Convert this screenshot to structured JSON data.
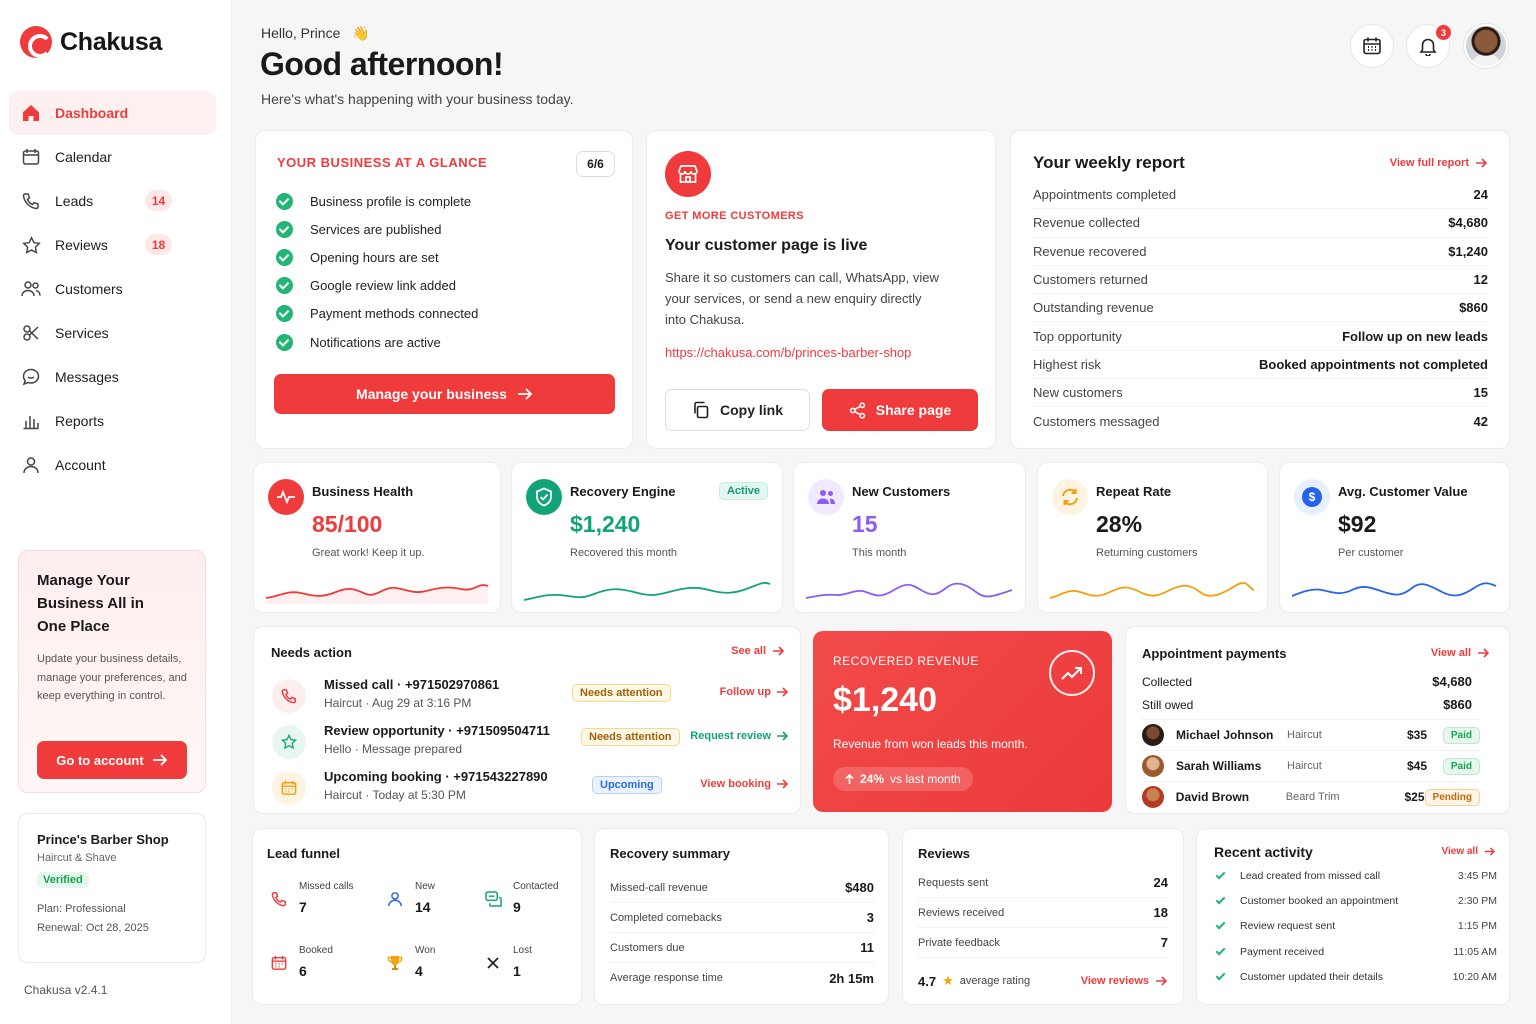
{
  "brand": {
    "name": "Chakusa",
    "version": "Chakusa v2.4.1"
  },
  "colors": {
    "accent": "#ef3b3b",
    "success": "#22b573",
    "background": "#f6f6f7"
  },
  "sidebar": {
    "items": [
      {
        "label": "Dashboard",
        "icon": "home-icon",
        "active": true
      },
      {
        "label": "Calendar",
        "icon": "calendar-icon"
      },
      {
        "label": "Leads",
        "icon": "phone-icon",
        "badge": "14"
      },
      {
        "label": "Reviews",
        "icon": "star-icon",
        "badge": "18"
      },
      {
        "label": "Customers",
        "icon": "users-icon"
      },
      {
        "label": "Services",
        "icon": "services-icon"
      },
      {
        "label": "Messages",
        "icon": "message-icon"
      },
      {
        "label": "Reports",
        "icon": "bar-chart-icon"
      },
      {
        "label": "Account",
        "icon": "user-icon"
      }
    ],
    "promo": {
      "title": "Manage Your Business All in One Place",
      "text": "Update your business details, manage your preferences, and keep everything in control.",
      "button": "Go to account"
    },
    "shop": {
      "name": "Prince's Barber Shop",
      "category": "Haircut & Shave",
      "badge": "Verified",
      "plan": "Plan: Professional",
      "renewal": "Renewal: Oct 28, 2025"
    }
  },
  "header": {
    "hello": "Hello, Prince",
    "wave": "👋",
    "title": "Good afternoon!",
    "subtitle": "Here's what's happening with your business today.",
    "notification_count": "3"
  },
  "glance": {
    "title": "YOUR BUSINESS AT A GLANCE",
    "count": "6/6",
    "items": [
      "Business profile is complete",
      "Services are published",
      "Opening hours are set",
      "Google review link added",
      "Payment methods connected",
      "Notifications are active"
    ],
    "button": "Manage your business"
  },
  "customer_page": {
    "eyebrow": "GET MORE CUSTOMERS",
    "title": "Your customer page is live",
    "desc": "Share it so customers can call, WhatsApp, view your services, or send a new enquiry directly into Chakusa.",
    "link": "https://chakusa.com/b/princes-barber-shop",
    "copy_button": "Copy link",
    "share_button": "Share page"
  },
  "weekly_report": {
    "title": "Your weekly report",
    "link": "View full report",
    "rows": [
      {
        "k": "Appointments completed",
        "v": "24"
      },
      {
        "k": "Revenue collected",
        "v": "$4,680"
      },
      {
        "k": "Revenue recovered",
        "v": "$1,240"
      },
      {
        "k": "Customers returned",
        "v": "12"
      },
      {
        "k": "Outstanding revenue",
        "v": "$860"
      },
      {
        "k": "Top opportunity",
        "v": "Follow up on new leads"
      },
      {
        "k": "Highest risk",
        "v": "Booked appointments not completed"
      },
      {
        "k": "New customers",
        "v": "15"
      },
      {
        "k": "Customers messaged",
        "v": "42"
      }
    ]
  },
  "metrics": [
    {
      "title": "Business Health",
      "value": "85/100",
      "sub": "Great work! Keep it up.",
      "color": "#ef3b3b",
      "icon": "pulse-icon"
    },
    {
      "title": "Recovery Engine",
      "value": "$1,240",
      "sub": "Recovered this month",
      "color": "#13a37a",
      "icon": "shield-check-icon",
      "pill": "Active"
    },
    {
      "title": "New Customers",
      "value": "15",
      "sub": "This month",
      "color": "#8b5cf6",
      "icon": "users-icon"
    },
    {
      "title": "Repeat Rate",
      "value": "28%",
      "sub": "Returning customers",
      "color": "#f59e0b",
      "icon": "refresh-icon"
    },
    {
      "title": "Avg. Customer Value",
      "value": "$92",
      "sub": "Per customer",
      "color": "#2563eb",
      "icon": "dollar-icon"
    }
  ],
  "needs_action": {
    "title": "Needs action",
    "see_all": "See all",
    "items": [
      {
        "title": "Missed call",
        "phone": "+971502970861",
        "sub1": "Haircut",
        "sub2": "Aug 29 at 3:16 PM",
        "pill": "Needs attention",
        "link": "Follow up",
        "icon": "phone-icon"
      },
      {
        "title": "Review opportunity",
        "phone": "+971509504711",
        "sub1": "Hello",
        "sub2": "Message prepared",
        "pill": "Needs attention",
        "link": "Request review",
        "icon": "star-icon"
      },
      {
        "title": "Upcoming booking",
        "phone": "+971543227890",
        "sub1": "Haircut",
        "sub2": "Today at 5:30 PM",
        "pill": "Upcoming",
        "link": "View booking",
        "icon": "calendar-icon"
      }
    ]
  },
  "recovered_revenue": {
    "label": "RECOVERED REVENUE",
    "value": "$1,240",
    "desc": "Revenue from won leads this month.",
    "change": "24%",
    "change_label": "vs last month"
  },
  "appointment_payments": {
    "title": "Appointment payments",
    "view_all": "View all",
    "collected_label": "Collected",
    "collected": "$4,680",
    "owed_label": "Still owed",
    "owed": "$860",
    "rows": [
      {
        "name": "Michael Johnson",
        "service": "Haircut",
        "amount": "$35",
        "status": "Paid"
      },
      {
        "name": "Sarah Williams",
        "service": "Haircut",
        "amount": "$45",
        "status": "Paid"
      },
      {
        "name": "David Brown",
        "service": "Beard Trim",
        "amount": "$25",
        "status": "Pending"
      }
    ]
  },
  "lead_funnel": {
    "title": "Lead funnel",
    "items": [
      {
        "label": "Missed calls",
        "value": "7",
        "icon": "phone-icon"
      },
      {
        "label": "New",
        "value": "14",
        "icon": "user-icon"
      },
      {
        "label": "Contacted",
        "value": "9",
        "icon": "chat-icon"
      },
      {
        "label": "Booked",
        "value": "6",
        "icon": "calendar-icon"
      },
      {
        "label": "Won",
        "value": "4",
        "icon": "trophy-icon"
      },
      {
        "label": "Lost",
        "value": "1",
        "icon": "x-icon"
      }
    ]
  },
  "recovery_summary": {
    "title": "Recovery summary",
    "rows": [
      {
        "k": "Missed-call revenue",
        "v": "$480"
      },
      {
        "k": "Completed comebacks",
        "v": "3"
      },
      {
        "k": "Customers due",
        "v": "11"
      },
      {
        "k": "Average response time",
        "v": "2h 15m"
      }
    ]
  },
  "reviews": {
    "title": "Reviews",
    "rows": [
      {
        "k": "Requests sent",
        "v": "24"
      },
      {
        "k": "Reviews received",
        "v": "18"
      },
      {
        "k": "Private feedback",
        "v": "7"
      }
    ],
    "rating": "4.7",
    "rating_label": "average rating",
    "link": "View reviews"
  },
  "recent_activity": {
    "title": "Recent activity",
    "view_all": "View all",
    "rows": [
      {
        "text": "Lead created from missed call",
        "time": "3:45 PM"
      },
      {
        "text": "Customer booked an appointment",
        "time": "2:30 PM"
      },
      {
        "text": "Review request sent",
        "time": "1:15 PM"
      },
      {
        "text": "Payment received",
        "time": "11:05 AM"
      },
      {
        "text": "Customer updated their details",
        "time": "10:20 AM"
      }
    ]
  }
}
